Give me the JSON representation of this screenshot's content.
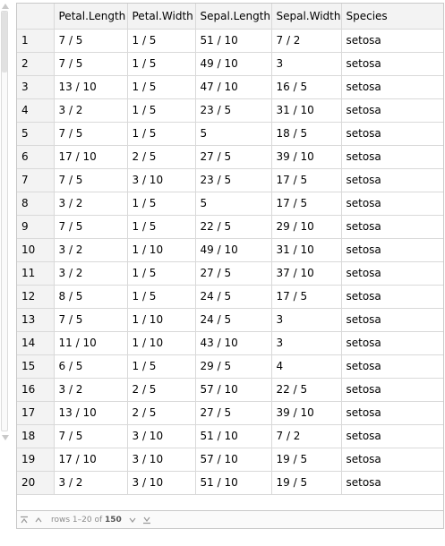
{
  "columns": [
    "",
    "Petal.Length",
    "Petal.Width",
    "Sepal.Length",
    "Sepal.Width",
    "Species"
  ],
  "rows": [
    [
      "1",
      "7 / 5",
      "1 / 5",
      "51 / 10",
      "7 / 2",
      "setosa"
    ],
    [
      "2",
      "7 / 5",
      "1 / 5",
      "49 / 10",
      "3",
      "setosa"
    ],
    [
      "3",
      "13 / 10",
      "1 / 5",
      "47 / 10",
      "16 / 5",
      "setosa"
    ],
    [
      "4",
      "3 / 2",
      "1 / 5",
      "23 / 5",
      "31 / 10",
      "setosa"
    ],
    [
      "5",
      "7 / 5",
      "1 / 5",
      "5",
      "18 / 5",
      "setosa"
    ],
    [
      "6",
      "17 / 10",
      "2 / 5",
      "27 / 5",
      "39 / 10",
      "setosa"
    ],
    [
      "7",
      "7 / 5",
      "3 / 10",
      "23 / 5",
      "17 / 5",
      "setosa"
    ],
    [
      "8",
      "3 / 2",
      "1 / 5",
      "5",
      "17 / 5",
      "setosa"
    ],
    [
      "9",
      "7 / 5",
      "1 / 5",
      "22 / 5",
      "29 / 10",
      "setosa"
    ],
    [
      "10",
      "3 / 2",
      "1 / 10",
      "49 / 10",
      "31 / 10",
      "setosa"
    ],
    [
      "11",
      "3 / 2",
      "1 / 5",
      "27 / 5",
      "37 / 10",
      "setosa"
    ],
    [
      "12",
      "8 / 5",
      "1 / 5",
      "24 / 5",
      "17 / 5",
      "setosa"
    ],
    [
      "13",
      "7 / 5",
      "1 / 10",
      "24 / 5",
      "3",
      "setosa"
    ],
    [
      "14",
      "11 / 10",
      "1 / 10",
      "43 / 10",
      "3",
      "setosa"
    ],
    [
      "15",
      "6 / 5",
      "1 / 5",
      "29 / 5",
      "4",
      "setosa"
    ],
    [
      "16",
      "3 / 2",
      "2 / 5",
      "57 / 10",
      "22 / 5",
      "setosa"
    ],
    [
      "17",
      "13 / 10",
      "2 / 5",
      "27 / 5",
      "39 / 10",
      "setosa"
    ],
    [
      "18",
      "7 / 5",
      "3 / 10",
      "51 / 10",
      "7 / 2",
      "setosa"
    ],
    [
      "19",
      "17 / 10",
      "3 / 10",
      "57 / 10",
      "19 / 5",
      "setosa"
    ],
    [
      "20",
      "3 / 2",
      "3 / 10",
      "51 / 10",
      "19 / 5",
      "setosa"
    ]
  ],
  "footer": {
    "rows_label": "rows 1–20 of ",
    "total": "150",
    "icons": {
      "first": "first-page-icon",
      "prev": "previous-page-icon",
      "next": "next-page-icon",
      "last": "last-page-icon"
    }
  },
  "colors": {
    "header_bg": "#f3f3f3",
    "grid_line": "#d9d9d9",
    "footer_text": "#8a8a8a"
  }
}
